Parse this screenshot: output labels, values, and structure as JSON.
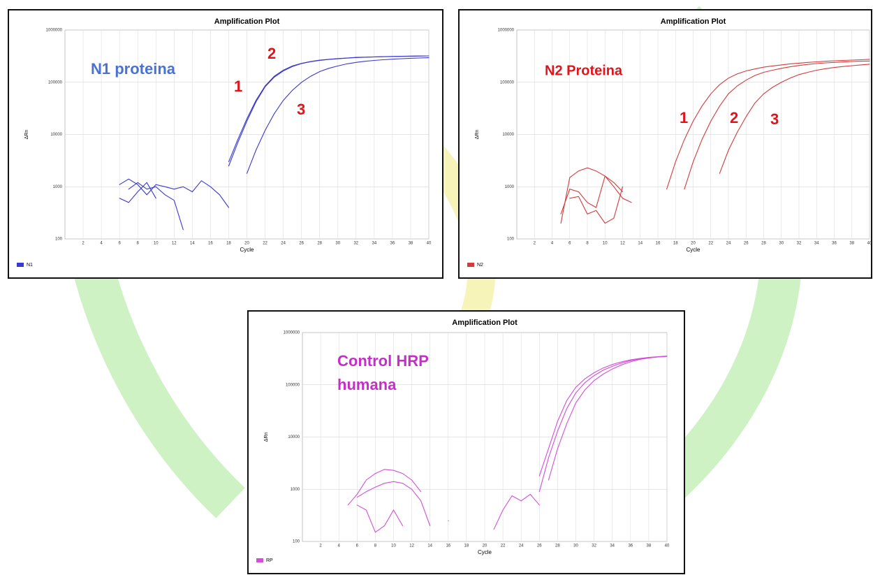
{
  "chart_data": [
    {
      "type": "line",
      "title": "Amplification Plot",
      "x_label": "Cycle",
      "y_label": "ΔRn",
      "legend_label": "N1",
      "color": "#3a3ad0",
      "log_scale": true,
      "grid": true,
      "xlim": [
        0,
        40
      ],
      "xticks": [
        2,
        4,
        6,
        8,
        10,
        12,
        14,
        16,
        18,
        20,
        22,
        24,
        26,
        28,
        30,
        32,
        34,
        36,
        38,
        40
      ],
      "ylim": [
        100,
        1000000
      ],
      "yticks": [
        100,
        1000,
        10000,
        100000,
        1000000
      ],
      "annotations": [
        {
          "text": "N1 proteina",
          "color": "#4a72d4"
        },
        {
          "text": "1",
          "color": "#e0141b"
        },
        {
          "text": "2",
          "color": "#e0141b"
        },
        {
          "text": "3",
          "color": "#e0141b"
        }
      ],
      "x": [
        1,
        2,
        3,
        4,
        5,
        6,
        7,
        8,
        9,
        10,
        11,
        12,
        13,
        14,
        15,
        16,
        17,
        18,
        19,
        20,
        21,
        22,
        23,
        24,
        25,
        26,
        27,
        28,
        29,
        30,
        31,
        32,
        33,
        34,
        35,
        36,
        37,
        38,
        39,
        40
      ],
      "series": [
        {
          "values": [
            null,
            null,
            null,
            null,
            null,
            null,
            null,
            null,
            null,
            null,
            null,
            null,
            null,
            null,
            null,
            null,
            null,
            3000,
            8000,
            20000,
            45000,
            85000,
            130000,
            170000,
            205000,
            230000,
            250000,
            265000,
            275000,
            285000,
            292000,
            300000,
            303000,
            306000,
            310000,
            312000,
            315000,
            317000,
            319000,
            320000
          ]
        },
        {
          "values": [
            null,
            null,
            null,
            null,
            null,
            null,
            null,
            null,
            null,
            null,
            null,
            null,
            null,
            null,
            null,
            null,
            null,
            2500,
            7000,
            18000,
            42000,
            82000,
            125000,
            165000,
            200000,
            228000,
            248000,
            262000,
            273000,
            282000,
            290000,
            297000,
            301000,
            305000,
            308000,
            311000,
            313000,
            316000,
            318000,
            320000
          ]
        },
        {
          "values": [
            null,
            null,
            null,
            null,
            null,
            null,
            null,
            null,
            null,
            null,
            null,
            null,
            null,
            null,
            null,
            null,
            null,
            null,
            null,
            1800,
            5000,
            12000,
            25000,
            45000,
            70000,
            100000,
            130000,
            160000,
            185000,
            205000,
            225000,
            240000,
            252000,
            262000,
            270000,
            277000,
            283000,
            288000,
            292000,
            295000
          ]
        },
        {
          "values": [
            null,
            null,
            null,
            null,
            null,
            1100,
            1400,
            1100,
            700,
            1100,
            1000,
            900,
            1000,
            800,
            1300,
            1000,
            700,
            400,
            null,
            null,
            null,
            null,
            null,
            null,
            null,
            null,
            null,
            null,
            null,
            null,
            null,
            null,
            null,
            null,
            null,
            null,
            null,
            null,
            null,
            null
          ]
        },
        {
          "values": [
            null,
            null,
            null,
            null,
            null,
            600,
            500,
            800,
            1200,
            600,
            null,
            null,
            null,
            null,
            null,
            null,
            null,
            null,
            null,
            null,
            null,
            null,
            null,
            null,
            null,
            null,
            null,
            null,
            null,
            null,
            null,
            null,
            null,
            null,
            null,
            null,
            null,
            null,
            null,
            null
          ]
        },
        {
          "values": [
            null,
            null,
            null,
            null,
            null,
            null,
            900,
            1200,
            900,
            1000,
            700,
            550,
            150,
            null,
            null,
            null,
            null,
            null,
            null,
            null,
            null,
            null,
            null,
            null,
            null,
            null,
            null,
            null,
            null,
            null,
            null,
            null,
            null,
            null,
            null,
            null,
            null,
            null,
            null,
            null
          ]
        }
      ]
    },
    {
      "type": "line",
      "title": "Amplification Plot",
      "x_label": "Cycle",
      "y_label": "ΔRn",
      "legend_label": "N2",
      "color": "#d23c3c",
      "log_scale": true,
      "grid": true,
      "xlim": [
        0,
        40
      ],
      "xticks": [
        2,
        4,
        6,
        8,
        10,
        12,
        14,
        16,
        18,
        20,
        22,
        24,
        26,
        28,
        30,
        32,
        34,
        36,
        38,
        40
      ],
      "ylim": [
        100,
        1000000
      ],
      "yticks": [
        100,
        1000,
        10000,
        100000,
        1000000
      ],
      "annotations": [
        {
          "text": "N2 Proteina",
          "color": "#e0141b"
        },
        {
          "text": "1",
          "color": "#e0141b"
        },
        {
          "text": "2",
          "color": "#e0141b"
        },
        {
          "text": "3",
          "color": "#e0141b"
        }
      ],
      "x": [
        1,
        2,
        3,
        4,
        5,
        6,
        7,
        8,
        9,
        10,
        11,
        12,
        13,
        14,
        15,
        16,
        17,
        18,
        19,
        20,
        21,
        22,
        23,
        24,
        25,
        26,
        27,
        28,
        29,
        30,
        31,
        32,
        33,
        34,
        35,
        36,
        37,
        38,
        39,
        40
      ],
      "series": [
        {
          "values": [
            null,
            null,
            null,
            null,
            null,
            null,
            null,
            null,
            null,
            null,
            null,
            null,
            null,
            null,
            null,
            null,
            900,
            3000,
            8000,
            18000,
            35000,
            60000,
            90000,
            120000,
            145000,
            165000,
            180000,
            195000,
            205000,
            215000,
            225000,
            232000,
            240000,
            246000,
            252000,
            258000,
            262000,
            266000,
            270000,
            275000
          ]
        },
        {
          "values": [
            null,
            null,
            null,
            null,
            null,
            null,
            null,
            null,
            null,
            null,
            null,
            null,
            null,
            null,
            null,
            null,
            null,
            null,
            900,
            3000,
            8000,
            18000,
            35000,
            60000,
            85000,
            110000,
            135000,
            155000,
            170000,
            185000,
            198000,
            210000,
            220000,
            228000,
            235000,
            240000,
            245000,
            250000,
            253000,
            255000
          ]
        },
        {
          "values": [
            null,
            null,
            null,
            null,
            null,
            null,
            null,
            null,
            null,
            null,
            null,
            null,
            null,
            null,
            null,
            null,
            null,
            null,
            null,
            null,
            null,
            null,
            1800,
            5000,
            11000,
            22000,
            40000,
            60000,
            80000,
            100000,
            120000,
            140000,
            155000,
            170000,
            182000,
            192000,
            200000,
            208000,
            215000,
            222000
          ]
        },
        {
          "values": [
            null,
            null,
            null,
            null,
            200,
            1500,
            2000,
            2300,
            2000,
            1600,
            1000,
            600,
            500,
            null,
            null,
            null,
            null,
            null,
            null,
            null,
            null,
            null,
            null,
            null,
            null,
            null,
            null,
            null,
            null,
            null,
            null,
            null,
            null,
            null,
            null,
            null,
            null,
            null,
            null,
            null
          ]
        },
        {
          "values": [
            null,
            null,
            null,
            null,
            300,
            900,
            800,
            500,
            400,
            1600,
            1200,
            800,
            null,
            null,
            null,
            null,
            null,
            null,
            null,
            null,
            null,
            null,
            null,
            null,
            null,
            null,
            null,
            null,
            null,
            null,
            null,
            null,
            null,
            null,
            null,
            null,
            null,
            null,
            null,
            null
          ]
        },
        {
          "values": [
            null,
            null,
            null,
            null,
            null,
            600,
            650,
            300,
            350,
            200,
            250,
            1000,
            null,
            null,
            null,
            null,
            null,
            null,
            null,
            null,
            null,
            null,
            null,
            null,
            null,
            null,
            null,
            null,
            null,
            null,
            null,
            null,
            null,
            null,
            null,
            null,
            null,
            null,
            null,
            null
          ]
        }
      ]
    },
    {
      "type": "line",
      "title": "Amplification Plot",
      "x_label": "Cycle",
      "y_label": "ΔRn",
      "legend_label": "RP",
      "color": "#d34fd8",
      "log_scale": true,
      "grid": true,
      "xlim": [
        0,
        40
      ],
      "xticks": [
        2,
        4,
        6,
        8,
        10,
        12,
        14,
        16,
        18,
        20,
        22,
        24,
        26,
        28,
        30,
        32,
        34,
        36,
        38,
        40
      ],
      "ylim": [
        100,
        1000000
      ],
      "yticks": [
        100,
        1000,
        10000,
        100000,
        1000000
      ],
      "annotations": [
        {
          "text": "Control HRP",
          "color": "#c52fc7"
        },
        {
          "text": "humana",
          "color": "#c52fc7"
        }
      ],
      "x": [
        1,
        2,
        3,
        4,
        5,
        6,
        7,
        8,
        9,
        10,
        11,
        12,
        13,
        14,
        15,
        16,
        17,
        18,
        19,
        20,
        21,
        22,
        23,
        24,
        25,
        26,
        27,
        28,
        29,
        30,
        31,
        32,
        33,
        34,
        35,
        36,
        37,
        38,
        39,
        40
      ],
      "series": [
        {
          "values": [
            null,
            null,
            null,
            null,
            null,
            null,
            null,
            null,
            null,
            null,
            null,
            null,
            null,
            null,
            null,
            null,
            null,
            null,
            null,
            null,
            null,
            null,
            null,
            null,
            null,
            1800,
            6000,
            20000,
            50000,
            90000,
            130000,
            170000,
            210000,
            245000,
            275000,
            300000,
            320000,
            335000,
            345000,
            355000
          ]
        },
        {
          "values": [
            null,
            null,
            null,
            null,
            null,
            null,
            null,
            null,
            null,
            null,
            null,
            null,
            null,
            null,
            null,
            null,
            null,
            null,
            null,
            null,
            null,
            null,
            null,
            null,
            null,
            900,
            4000,
            13000,
            35000,
            70000,
            110000,
            150000,
            190000,
            225000,
            260000,
            290000,
            312000,
            330000,
            342000,
            352000
          ]
        },
        {
          "values": [
            null,
            null,
            null,
            null,
            null,
            null,
            null,
            null,
            null,
            null,
            null,
            null,
            null,
            null,
            null,
            null,
            null,
            null,
            null,
            null,
            null,
            null,
            null,
            null,
            null,
            null,
            1500,
            6000,
            18000,
            45000,
            80000,
            120000,
            160000,
            200000,
            240000,
            275000,
            305000,
            325000,
            340000,
            350000
          ]
        },
        {
          "values": [
            null,
            null,
            null,
            null,
            500,
            800,
            1500,
            2000,
            2400,
            2300,
            2000,
            1500,
            900,
            null,
            null,
            null,
            null,
            null,
            null,
            null,
            170,
            400,
            750,
            600,
            800,
            500,
            null,
            null,
            null,
            null,
            null,
            null,
            null,
            null,
            null,
            null,
            null,
            null,
            null,
            null
          ]
        },
        {
          "values": [
            null,
            null,
            null,
            null,
            null,
            700,
            900,
            1100,
            1300,
            1400,
            1300,
            1000,
            600,
            200,
            null,
            null,
            null,
            null,
            null,
            null,
            null,
            null,
            null,
            null,
            null,
            null,
            null,
            null,
            null,
            null,
            null,
            null,
            null,
            null,
            null,
            null,
            null,
            null,
            null,
            null
          ]
        },
        {
          "values": [
            null,
            null,
            null,
            null,
            null,
            500,
            400,
            150,
            200,
            400,
            200,
            null,
            null,
            null,
            null,
            250,
            null,
            null,
            null,
            null,
            null,
            null,
            null,
            null,
            null,
            null,
            null,
            null,
            null,
            null,
            null,
            null,
            null,
            null,
            null,
            null,
            null,
            null,
            null,
            null
          ]
        }
      ]
    }
  ]
}
